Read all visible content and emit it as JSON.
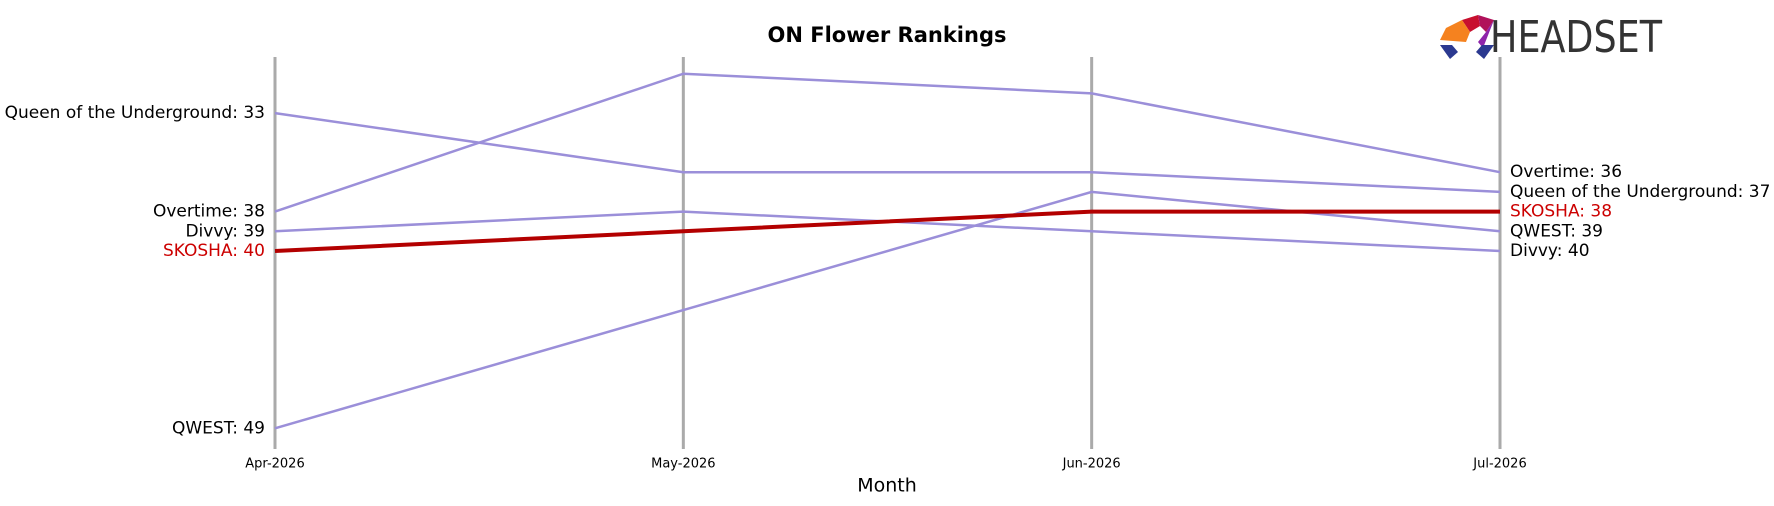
{
  "chart_data": {
    "type": "bump",
    "title": "ON Flower Rankings",
    "x_label": "Month",
    "logo_text": "HEADSET",
    "categories": [
      "Apr-2026",
      "May-2026",
      "Jun-2026",
      "Jul-2026"
    ],
    "ylim": [
      30,
      50
    ],
    "y_inverted": true,
    "series": [
      {
        "name": "Queen of the Underground",
        "color": "#9b8fd9",
        "label_color": "#000000",
        "values": [
          33,
          36,
          36,
          37
        ],
        "value_labels": [
          "Queen of the Underground: 33",
          null,
          null,
          "Queen of the Underground: 37"
        ]
      },
      {
        "name": "Overtime",
        "color": "#9b8fd9",
        "label_color": "#000000",
        "values": [
          38,
          31,
          32,
          36
        ],
        "value_labels": [
          "Overtime: 38",
          null,
          null,
          "Overtime: 36"
        ]
      },
      {
        "name": "Divvy",
        "color": "#9b8fd9",
        "label_color": "#000000",
        "values": [
          39,
          38,
          39,
          40
        ],
        "value_labels": [
          "Divvy: 39",
          null,
          null,
          "Divvy: 40"
        ]
      },
      {
        "name": "QWEST",
        "color": "#9b8fd9",
        "label_color": "#000000",
        "values": [
          49,
          43,
          37,
          39
        ],
        "value_labels": [
          "QWEST: 49",
          null,
          null,
          "QWEST: 39"
        ]
      },
      {
        "name": "SKOSHA",
        "color": "#b30000",
        "label_color": "#cc0000",
        "line_width": 4,
        "values": [
          40,
          39,
          38,
          38
        ],
        "value_labels": [
          "SKOSHA: 40",
          null,
          null,
          "SKOSHA: 38"
        ]
      }
    ]
  }
}
